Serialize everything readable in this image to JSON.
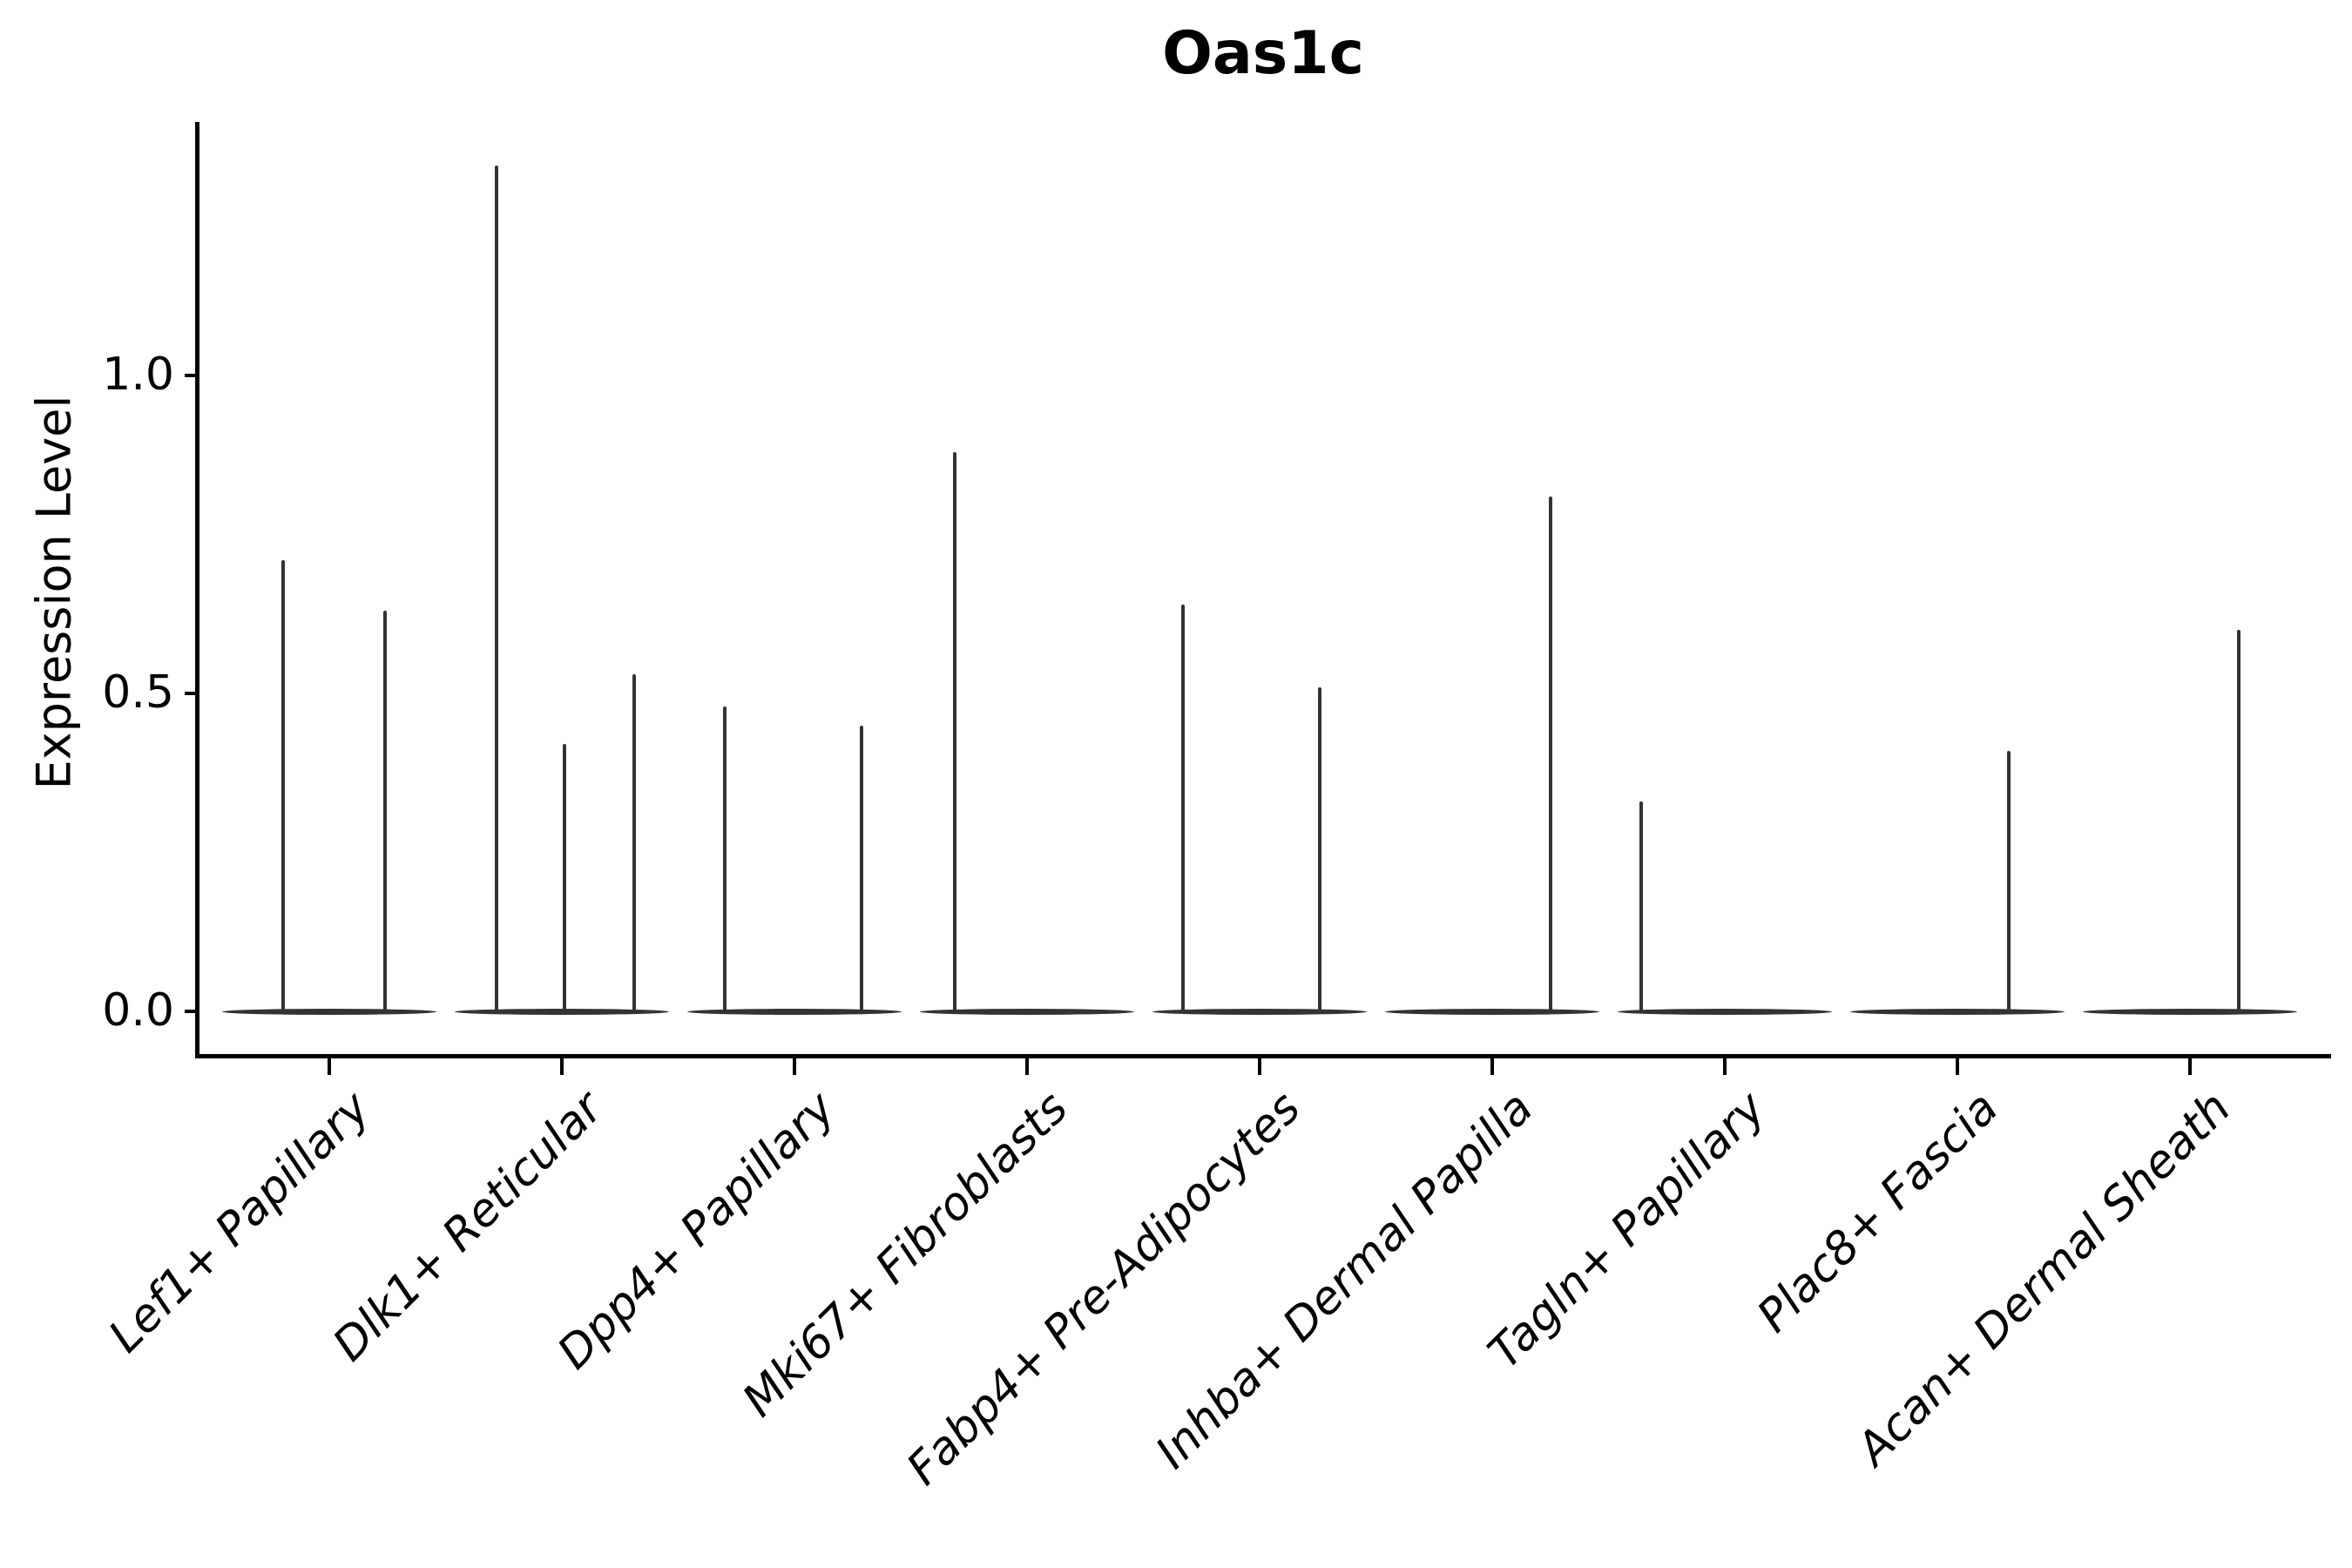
{
  "figure": {
    "title": "Oas1c",
    "ylabel": "Expression Level"
  },
  "colors": {
    "ink": "#000000",
    "violin": "#333333",
    "background": "#ffffff"
  },
  "chart_data": {
    "type": "violin",
    "title": "Oas1c",
    "xlabel": "",
    "ylabel": "Expression Level",
    "yticks": [
      0.0,
      0.5,
      1.0
    ],
    "ylim": [
      -0.07,
      1.4
    ],
    "grid": false,
    "legend": null,
    "xtick_rotation": 45,
    "xtick_italic": true,
    "categories": [
      "Lef1+ Papillary",
      "Dlk1+ Reticular",
      "Dpp4+ Papillary",
      "Mki67+ Fibroblasts",
      "Fabp4+ Pre-Adipocytes",
      "Inhba+ Dermal Papilla",
      "Tagln+ Papillary",
      "Plac8+ Fascia",
      "Acan+ Dermal Sheath"
    ],
    "baseline_value": 0.0,
    "base_halfwidth": 0.46,
    "violins": [
      {
        "category": "Lef1+ Papillary",
        "spikes": [
          {
            "pos": -0.2,
            "peak": 0.71
          },
          {
            "pos": 0.24,
            "peak": 0.63
          }
        ]
      },
      {
        "category": "Dlk1+ Reticular",
        "spikes": [
          {
            "pos": -0.28,
            "peak": 1.33
          },
          {
            "pos": 0.01,
            "peak": 0.42
          },
          {
            "pos": 0.31,
            "peak": 0.53
          }
        ]
      },
      {
        "category": "Dpp4+ Papillary",
        "spikes": [
          {
            "pos": -0.3,
            "peak": 0.48
          },
          {
            "pos": 0.29,
            "peak": 0.45
          }
        ]
      },
      {
        "category": "Mki67+ Fibroblasts",
        "spikes": [
          {
            "pos": -0.31,
            "peak": 0.88
          }
        ]
      },
      {
        "category": "Fabp4+ Pre-Adipocytes",
        "spikes": [
          {
            "pos": -0.33,
            "peak": 0.64
          },
          {
            "pos": 0.26,
            "peak": 0.51
          }
        ]
      },
      {
        "category": "Inhba+ Dermal Papilla",
        "spikes": [
          {
            "pos": 0.25,
            "peak": 0.81
          }
        ]
      },
      {
        "category": "Tagln+ Papillary",
        "spikes": [
          {
            "pos": -0.36,
            "peak": 0.33
          }
        ]
      },
      {
        "category": "Plac8+ Fascia",
        "spikes": [
          {
            "pos": 0.22,
            "peak": 0.41
          }
        ]
      },
      {
        "category": "Acan+ Dermal Sheath",
        "spikes": [
          {
            "pos": 0.21,
            "peak": 0.6
          }
        ]
      }
    ]
  }
}
